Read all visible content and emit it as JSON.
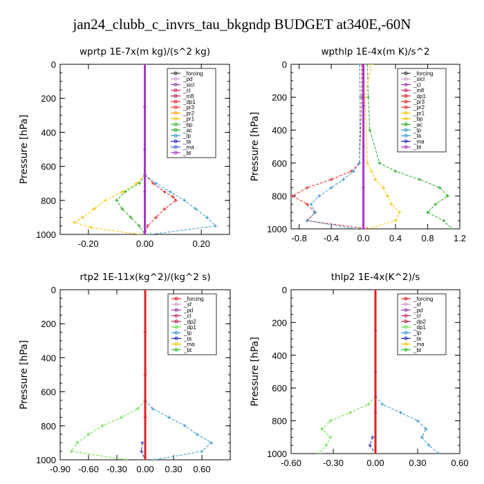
{
  "figure": {
    "title": "jan24_clubb_c_invrs_tau_bkgndp  BUDGET at340E,-60N"
  },
  "chart_data": [
    {
      "type": "line",
      "id": "wprtp",
      "title": "wprtp   1E-7x(m kg)/(s^2 kg)",
      "ylabel": "Pressure [hPa]",
      "xlim": [
        -0.3,
        0.3
      ],
      "ylim": [
        1000,
        0
      ],
      "xticks": [
        -0.2,
        0.0,
        0.2
      ],
      "xtick_labels": [
        "-0.20",
        "0.00",
        "0.20"
      ],
      "yticks": [
        0,
        200,
        400,
        600,
        800,
        1000
      ],
      "legend": {
        "position": "top-right",
        "entries": [
          "_forcing",
          "_pd",
          "_sicl",
          "_cl",
          "_mfl",
          "_dp1",
          "_pr3",
          "_pr2",
          "_pr1",
          "_bp",
          "_ac",
          "_tp",
          "_ta",
          "_ma",
          "_bt"
        ]
      },
      "series": [
        {
          "name": "_ac",
          "color": "#22aa22",
          "y": [
            650,
            700,
            750,
            800,
            850,
            900,
            950,
            1000
          ],
          "x": [
            0,
            -0.02,
            -0.07,
            -0.1,
            -0.08,
            -0.05,
            -0.02,
            0
          ]
        },
        {
          "name": "_pr1",
          "color": "#f5c400",
          "y": [
            650,
            700,
            750,
            800,
            850,
            900,
            930,
            960,
            1000
          ],
          "x": [
            0,
            -0.03,
            -0.08,
            -0.14,
            -0.18,
            -0.22,
            -0.25,
            -0.19,
            -0.02
          ]
        },
        {
          "name": "_dp1",
          "color": "#e02020",
          "y": [
            650,
            700,
            750,
            780,
            800,
            850,
            900,
            950,
            1000
          ],
          "x": [
            0,
            0.03,
            0.07,
            0.1,
            0.11,
            0.07,
            0.04,
            0.01,
            0
          ]
        },
        {
          "name": "_tp",
          "color": "#3399cc",
          "y": [
            650,
            700,
            750,
            800,
            850,
            900,
            950,
            1000
          ],
          "x": [
            0,
            0.04,
            0.09,
            0.14,
            0.18,
            0.22,
            0.25,
            0.02
          ]
        },
        {
          "name": "_bt",
          "color": "#aa33cc",
          "y": [
            0,
            250,
            500,
            750,
            1000
          ],
          "x": [
            0,
            0,
            0,
            0,
            0
          ]
        }
      ]
    },
    {
      "type": "line",
      "id": "wpthlp",
      "title": "wpthlp   1E-4x(m K)/s^2",
      "ylabel": "Pressure [hPa]",
      "xlim": [
        -0.9,
        1.2
      ],
      "ylim": [
        1000,
        0
      ],
      "xticks": [
        -0.8,
        -0.4,
        0.0,
        0.4,
        0.8,
        1.2
      ],
      "xtick_labels": [
        "-0.8",
        "-0.4",
        "0.0",
        "0.4",
        "0.8",
        "1.2"
      ],
      "yticks": [
        0,
        200,
        400,
        600,
        800,
        1000
      ],
      "legend": {
        "position": "top-right",
        "entries": [
          "_forcing",
          "_sicl",
          "_cl",
          "_mfl",
          "_dp1",
          "_pr3",
          "_pr2",
          "_pr1",
          "_bp",
          "_ac",
          "_tp",
          "_ta",
          "_ma",
          "_bt"
        ]
      },
      "series": [
        {
          "name": "_ac",
          "color": "#22aa22",
          "y": [
            0,
            200,
            400,
            600,
            650,
            700,
            750,
            800,
            850,
            900,
            950,
            1000
          ],
          "x": [
            0.05,
            0.06,
            0.08,
            0.2,
            0.4,
            0.7,
            0.95,
            1.05,
            0.9,
            0.8,
            1.0,
            1.1
          ]
        },
        {
          "name": "_pr1",
          "color": "#f5c400",
          "y": [
            0,
            200,
            600,
            650,
            700,
            750,
            800,
            850,
            900,
            950,
            1000
          ],
          "x": [
            0.1,
            0.02,
            0.05,
            0.1,
            0.15,
            0.25,
            0.3,
            0.35,
            0.45,
            0.4,
            0.05
          ]
        },
        {
          "name": "_dp1",
          "color": "#e02020",
          "y": [
            0,
            200,
            600,
            650,
            700,
            750,
            800,
            850,
            900,
            950,
            1000
          ],
          "x": [
            -0.02,
            -0.02,
            -0.05,
            -0.15,
            -0.4,
            -0.7,
            -0.88,
            -0.7,
            -0.6,
            -0.7,
            0.05
          ]
        },
        {
          "name": "_tp",
          "color": "#3399cc",
          "y": [
            0,
            200,
            600,
            650,
            700,
            750,
            800,
            850,
            900,
            950,
            1000
          ],
          "x": [
            -0.05,
            -0.04,
            -0.05,
            -0.12,
            -0.25,
            -0.4,
            -0.55,
            -0.65,
            -0.6,
            -0.7,
            -0.1
          ]
        },
        {
          "name": "_bt",
          "color": "#aa33cc",
          "y": [
            0,
            250,
            500,
            750,
            1000
          ],
          "x": [
            0,
            0,
            0,
            0,
            0
          ]
        }
      ]
    },
    {
      "type": "line",
      "id": "rtp2",
      "title": "rtp2   1E-11x(kg^2)/(kg^2 s)",
      "ylabel": "Pressure [hPa]",
      "xlim": [
        -0.9,
        0.9
      ],
      "ylim": [
        1000,
        0
      ],
      "xticks": [
        -0.9,
        -0.6,
        -0.3,
        0.0,
        0.3,
        0.6
      ],
      "xtick_labels": [
        "-0.90",
        "-0.60",
        "-0.30",
        "0.00",
        "0.30",
        "0.60"
      ],
      "yticks": [
        0,
        200,
        400,
        600,
        800,
        1000
      ],
      "legend": {
        "position": "top-right",
        "entries": [
          "_forcing",
          "_sf",
          "_pd",
          "_cl",
          "_dp2",
          "_dp1",
          "_tp",
          "_ta",
          "_ma",
          "_bt"
        ]
      },
      "series": [
        {
          "name": "_dp1",
          "color": "#66dd44",
          "y": [
            650,
            700,
            750,
            800,
            850,
            900,
            950,
            1000
          ],
          "x": [
            0,
            -0.08,
            -0.25,
            -0.45,
            -0.6,
            -0.72,
            -0.78,
            -0.2
          ]
        },
        {
          "name": "_tp",
          "color": "#3399cc",
          "y": [
            650,
            700,
            750,
            800,
            850,
            900,
            950,
            1000
          ],
          "x": [
            0,
            0.08,
            0.25,
            0.42,
            0.55,
            0.7,
            0.6,
            0.1
          ]
        },
        {
          "name": "_ta",
          "color": "#2222bb",
          "y": [
            900,
            950,
            1000
          ],
          "x": [
            -0.03,
            -0.04,
            0
          ]
        },
        {
          "name": "_forcing",
          "color": "#e02020",
          "y": [
            0,
            250,
            500,
            750,
            1000
          ],
          "x": [
            0,
            0,
            0,
            0,
            0
          ]
        }
      ]
    },
    {
      "type": "line",
      "id": "thlp2",
      "title": "thlp2   1E-4x(K^2)/s",
      "ylabel": "Pressure [hPa]",
      "xlim": [
        -0.6,
        0.6
      ],
      "ylim": [
        1000,
        0
      ],
      "xticks": [
        -0.6,
        -0.3,
        0.0,
        0.3,
        0.6
      ],
      "xtick_labels": [
        "-0.60",
        "-0.30",
        "0.00",
        "0.30",
        "0.60"
      ],
      "yticks": [
        0,
        200,
        400,
        600,
        800,
        1000
      ],
      "legend": {
        "position": "top-right",
        "entries": [
          "_forcing",
          "_sf",
          "_pd",
          "_cl",
          "_dp2",
          "_dp1",
          "_tp",
          "_ta",
          "_ma",
          "_bt"
        ]
      },
      "series": [
        {
          "name": "_dp1",
          "color": "#66dd44",
          "y": [
            650,
            700,
            750,
            800,
            850,
            900,
            950,
            1000
          ],
          "x": [
            0,
            -0.05,
            -0.18,
            -0.32,
            -0.38,
            -0.32,
            -0.35,
            -0.4
          ]
        },
        {
          "name": "_tp",
          "color": "#3399cc",
          "y": [
            650,
            700,
            750,
            800,
            850,
            900,
            950,
            1000
          ],
          "x": [
            0,
            0.05,
            0.18,
            0.3,
            0.36,
            0.33,
            0.38,
            0.45
          ]
        },
        {
          "name": "_ta",
          "color": "#2222bb",
          "y": [
            900,
            950,
            1000
          ],
          "x": [
            -0.02,
            -0.04,
            0
          ]
        },
        {
          "name": "_forcing",
          "color": "#e02020",
          "y": [
            0,
            250,
            500,
            750,
            1000
          ],
          "x": [
            0,
            0,
            0,
            0,
            0
          ]
        }
      ]
    }
  ]
}
